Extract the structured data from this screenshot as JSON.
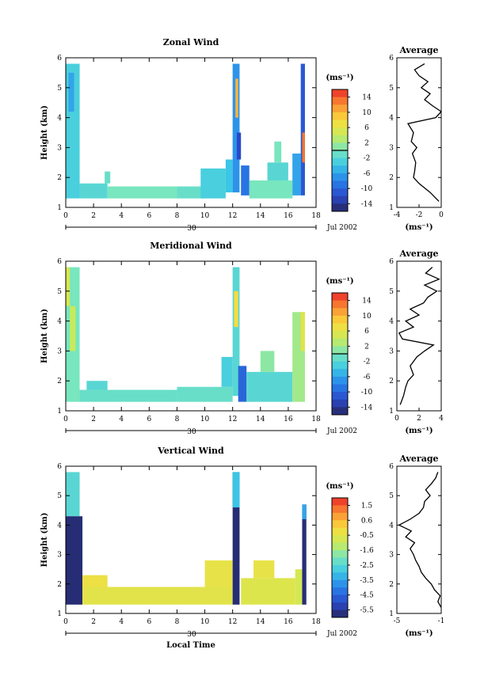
{
  "chart_data": [
    {
      "type": "heatmap",
      "title": "Zonal Wind",
      "ylabel": "Height (km)",
      "xlabel": "",
      "xlim": [
        0,
        18
      ],
      "ylim": [
        1,
        6
      ],
      "xticks": [
        "0",
        "2",
        "4",
        "6",
        "8",
        "10",
        "12",
        "14",
        "16",
        "18"
      ],
      "yticks": [
        "1",
        "2",
        "3",
        "4",
        "5",
        "6"
      ],
      "day_label": "30",
      "date_label": "Jul 2002",
      "colorbar": {
        "unit": "(ms⁻¹)",
        "range": [
          -16,
          16
        ],
        "tick_labels": [
          "14",
          "10",
          "6",
          "2",
          "-2",
          "-6",
          "-10",
          "-14"
        ],
        "zero_line": true
      },
      "blocks": [
        {
          "t0": 0.0,
          "t1": 1.0,
          "h0": 1.3,
          "h1": 5.8,
          "v": -3
        },
        {
          "t0": 0.2,
          "t1": 0.6,
          "h0": 4.2,
          "h1": 5.5,
          "v": -6
        },
        {
          "t0": 1.0,
          "t1": 3.0,
          "h0": 1.3,
          "h1": 1.8,
          "v": -2
        },
        {
          "t0": 2.8,
          "t1": 3.2,
          "h0": 1.8,
          "h1": 2.2,
          "v": -1
        },
        {
          "t0": 3.0,
          "t1": 8.0,
          "h0": 1.3,
          "h1": 1.7,
          "v": 0
        },
        {
          "t0": 8.0,
          "t1": 10.0,
          "h0": 1.3,
          "h1": 1.7,
          "v": -1
        },
        {
          "t0": 9.7,
          "t1": 11.5,
          "h0": 1.3,
          "h1": 2.3,
          "v": -3
        },
        {
          "t0": 11.5,
          "t1": 12.0,
          "h0": 1.5,
          "h1": 2.6,
          "v": -4
        },
        {
          "t0": 12.0,
          "t1": 12.5,
          "h0": 1.5,
          "h1": 5.8,
          "v": -7
        },
        {
          "t0": 12.2,
          "t1": 12.4,
          "h0": 4.0,
          "h1": 5.3,
          "v": 10
        },
        {
          "t0": 12.3,
          "t1": 12.6,
          "h0": 2.6,
          "h1": 3.5,
          "v": -12
        },
        {
          "t0": 12.6,
          "t1": 13.2,
          "h0": 1.4,
          "h1": 2.4,
          "v": -9
        },
        {
          "t0": 13.2,
          "t1": 16.3,
          "h0": 1.3,
          "h1": 1.9,
          "v": 0
        },
        {
          "t0": 14.5,
          "t1": 16.0,
          "h0": 1.9,
          "h1": 2.5,
          "v": -2
        },
        {
          "t0": 15.0,
          "t1": 15.5,
          "h0": 2.5,
          "h1": 3.2,
          "v": 0
        },
        {
          "t0": 16.3,
          "t1": 16.9,
          "h0": 1.4,
          "h1": 2.8,
          "v": -6
        },
        {
          "t0": 16.9,
          "t1": 17.2,
          "h0": 1.4,
          "h1": 5.8,
          "v": -11
        },
        {
          "t0": 17.0,
          "t1": 17.2,
          "h0": 2.5,
          "h1": 3.5,
          "v": 13
        }
      ],
      "profile": {
        "title": "Average",
        "xlim": [
          -4,
          0
        ],
        "xticks": [
          "-4",
          "-2",
          "0"
        ],
        "unit": "(ms⁻¹)",
        "heights": [
          1.2,
          1.5,
          1.8,
          2.0,
          2.2,
          2.5,
          2.8,
          3.0,
          3.2,
          3.5,
          3.8,
          4.0,
          4.2,
          4.4,
          4.6,
          4.8,
          5.0,
          5.2,
          5.4,
          5.6,
          5.8
        ],
        "values": [
          -0.2,
          -1.0,
          -2.0,
          -2.5,
          -2.4,
          -2.3,
          -2.6,
          -2.2,
          -2.7,
          -2.5,
          -3.0,
          -0.5,
          0.0,
          -0.8,
          -1.5,
          -1.0,
          -1.8,
          -1.2,
          -2.0,
          -2.4,
          -1.5
        ]
      }
    },
    {
      "type": "heatmap",
      "title": "Meridional Wind",
      "ylabel": "Height (km)",
      "xlabel": "",
      "xlim": [
        0,
        18
      ],
      "ylim": [
        1,
        6
      ],
      "xticks": [
        "0",
        "2",
        "4",
        "6",
        "8",
        "10",
        "12",
        "14",
        "16",
        "18"
      ],
      "yticks": [
        "1",
        "2",
        "3",
        "4",
        "5",
        "6"
      ],
      "day_label": "30",
      "date_label": "Jul 2002",
      "colorbar": {
        "unit": "(ms⁻¹)",
        "range": [
          -16,
          16
        ],
        "tick_labels": [
          "14",
          "10",
          "6",
          "2",
          "-2",
          "-6",
          "-10",
          "-14"
        ],
        "zero_line": true
      },
      "blocks": [
        {
          "t0": 0.0,
          "t1": 1.0,
          "h0": 1.3,
          "h1": 5.8,
          "v": 0
        },
        {
          "t0": 0.3,
          "t1": 0.7,
          "h0": 3.0,
          "h1": 4.5,
          "v": 4
        },
        {
          "t0": 0.0,
          "t1": 0.3,
          "h0": 4.5,
          "h1": 5.8,
          "v": 5
        },
        {
          "t0": 1.0,
          "t1": 8.0,
          "h0": 1.3,
          "h1": 1.7,
          "v": -1
        },
        {
          "t0": 1.5,
          "t1": 3.0,
          "h0": 1.7,
          "h1": 2.0,
          "v": -2
        },
        {
          "t0": 8.0,
          "t1": 12.0,
          "h0": 1.3,
          "h1": 1.8,
          "v": -1
        },
        {
          "t0": 11.2,
          "t1": 12.0,
          "h0": 1.8,
          "h1": 2.8,
          "v": -3
        },
        {
          "t0": 12.0,
          "t1": 12.5,
          "h0": 1.5,
          "h1": 5.8,
          "v": -2
        },
        {
          "t0": 12.1,
          "t1": 12.4,
          "h0": 3.8,
          "h1": 5.0,
          "v": 8
        },
        {
          "t0": 12.4,
          "t1": 13.0,
          "h0": 1.3,
          "h1": 2.5,
          "v": -10
        },
        {
          "t0": 13.0,
          "t1": 16.3,
          "h0": 1.3,
          "h1": 2.3,
          "v": -2
        },
        {
          "t0": 14.0,
          "t1": 15.0,
          "h0": 2.3,
          "h1": 3.0,
          "v": 1
        },
        {
          "t0": 16.3,
          "t1": 17.2,
          "h0": 1.3,
          "h1": 4.3,
          "v": 2
        },
        {
          "t0": 16.9,
          "t1": 17.2,
          "h0": 3.0,
          "h1": 4.3,
          "v": 6
        }
      ],
      "profile": {
        "title": "Average",
        "xlim": [
          0,
          4
        ],
        "xticks": [
          "0",
          "2",
          "4"
        ],
        "unit": "(ms⁻¹)",
        "heights": [
          1.2,
          1.5,
          1.8,
          2.0,
          2.2,
          2.5,
          2.8,
          3.0,
          3.2,
          3.4,
          3.6,
          3.8,
          4.0,
          4.2,
          4.4,
          4.6,
          4.8,
          5.0,
          5.2,
          5.4,
          5.6,
          5.8
        ],
        "values": [
          0.3,
          0.6,
          0.8,
          1.0,
          1.5,
          1.2,
          1.8,
          2.5,
          3.3,
          0.5,
          0.2,
          1.5,
          0.8,
          2.0,
          1.2,
          2.4,
          2.8,
          3.6,
          2.5,
          3.8,
          2.6,
          3.2
        ]
      }
    },
    {
      "type": "heatmap",
      "title": "Vertical Wind",
      "ylabel": "Height (km)",
      "xlabel": "Local Time",
      "xlim": [
        0,
        18
      ],
      "ylim": [
        1,
        6
      ],
      "xticks": [
        "0",
        "2",
        "4",
        "6",
        "8",
        "10",
        "12",
        "14",
        "16",
        "18"
      ],
      "yticks": [
        "1",
        "2",
        "3",
        "4",
        "5",
        "6"
      ],
      "day_label": "30",
      "date_label": "Jul 2002",
      "colorbar": {
        "unit": "(ms⁻¹)",
        "range": [
          -6,
          2
        ],
        "tick_labels": [
          "1.5",
          "0.6",
          "-0.5",
          "-1.6",
          "-2.5",
          "-3.5",
          "-4.5",
          "-5.5"
        ],
        "zero_line": false
      },
      "blocks": [
        {
          "t0": 0.0,
          "t1": 1.0,
          "h0": 4.3,
          "h1": 5.8,
          "v": -2.5
        },
        {
          "t0": 0.0,
          "t1": 1.2,
          "h0": 1.3,
          "h1": 4.3,
          "v": -5.8
        },
        {
          "t0": 1.2,
          "t1": 3.0,
          "h0": 1.6,
          "h1": 2.3,
          "v": -0.3
        },
        {
          "t0": 1.2,
          "t1": 12.0,
          "h0": 1.3,
          "h1": 1.9,
          "v": -0.5
        },
        {
          "t0": 10.0,
          "t1": 12.0,
          "h0": 1.9,
          "h1": 2.8,
          "v": -0.4
        },
        {
          "t0": 12.0,
          "t1": 12.5,
          "h0": 1.3,
          "h1": 5.8,
          "v": -5.8
        },
        {
          "t0": 12.0,
          "t1": 12.5,
          "h0": 4.6,
          "h1": 5.8,
          "v": -3.0
        },
        {
          "t0": 12.6,
          "t1": 16.5,
          "h0": 1.3,
          "h1": 2.2,
          "v": -0.6
        },
        {
          "t0": 13.5,
          "t1": 15.0,
          "h0": 2.2,
          "h1": 2.8,
          "v": -0.4
        },
        {
          "t0": 16.5,
          "t1": 17.0,
          "h0": 1.3,
          "h1": 2.5,
          "v": -0.8
        },
        {
          "t0": 17.0,
          "t1": 17.3,
          "h0": 1.3,
          "h1": 4.7,
          "v": -5.8
        },
        {
          "t0": 17.0,
          "t1": 17.3,
          "h0": 4.2,
          "h1": 4.7,
          "v": -3.5
        }
      ],
      "profile": {
        "title": "Average",
        "xlim": [
          -5,
          -1
        ],
        "xticks": [
          "-5",
          "-1"
        ],
        "unit": "(ms⁻¹)",
        "heights": [
          1.2,
          1.4,
          1.6,
          1.8,
          2.0,
          2.2,
          2.4,
          2.6,
          2.8,
          3.0,
          3.2,
          3.4,
          3.6,
          3.8,
          4.0,
          4.2,
          4.4,
          4.6,
          4.8,
          5.0,
          5.2,
          5.4,
          5.6,
          5.8
        ],
        "values": [
          -1.0,
          -1.3,
          -1.1,
          -1.6,
          -1.9,
          -2.4,
          -2.8,
          -3.0,
          -3.3,
          -3.5,
          -3.8,
          -3.4,
          -4.2,
          -3.7,
          -4.8,
          -3.8,
          -3.0,
          -2.6,
          -2.5,
          -2.0,
          -2.4,
          -1.9,
          -1.5,
          -1.3
        ]
      }
    }
  ]
}
